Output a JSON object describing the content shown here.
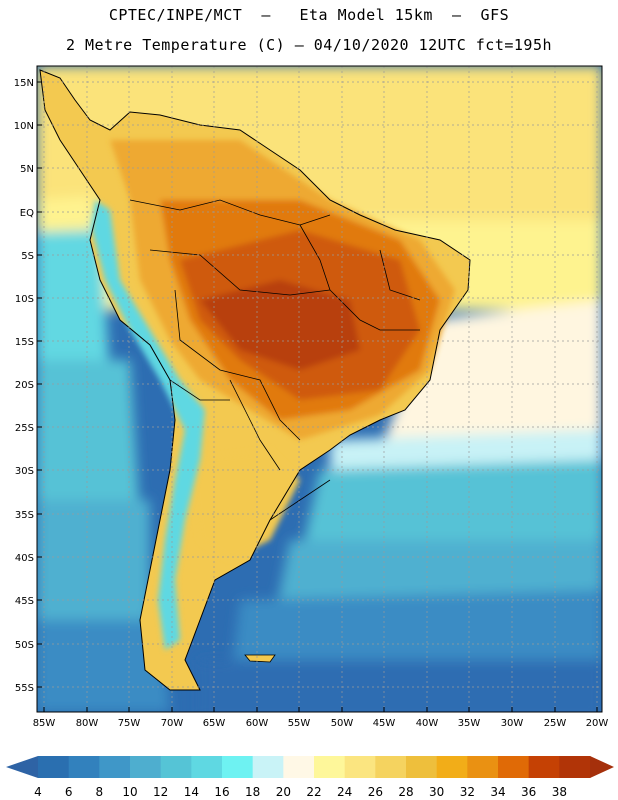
{
  "header": {
    "title_line1": "CPTEC/INPE/MCT  –   Eta Model 15km  –  GFS",
    "title_line2": "2 Metre Temperature (C) – 04/10/2020 12UTC fct=195h"
  },
  "map": {
    "lat_labels": [
      "15N",
      "10N",
      "5N",
      "EQ",
      "5S",
      "10S",
      "15S",
      "20S",
      "25S",
      "30S",
      "35S",
      "40S",
      "45S",
      "50S",
      "55S"
    ],
    "lon_labels": [
      "85W",
      "80W",
      "75W",
      "70W",
      "65W",
      "60W",
      "55W",
      "50W",
      "45W",
      "40W",
      "35W",
      "30W",
      "25W",
      "20W"
    ]
  },
  "colorbar": {
    "labels": [
      "4",
      "6",
      "8",
      "10",
      "12",
      "14",
      "16",
      "18",
      "20",
      "22",
      "24",
      "26",
      "28",
      "30",
      "32",
      "34",
      "36",
      "38"
    ],
    "colors": [
      "#2a6fb0",
      "#3281bd",
      "#3f97c8",
      "#4eaecf",
      "#55c4d6",
      "#5fd8e2",
      "#6ef2f2",
      "#c9f3f7",
      "#fff8e6",
      "#fef79a",
      "#fbe580",
      "#f5d35f",
      "#eebf3c",
      "#f2ad18",
      "#ea9112",
      "#e06a06",
      "#c54104",
      "#b13407"
    ],
    "left_color": "#2e63a5",
    "right_color": "#a5300b"
  },
  "map_colors": {
    "sea_deep": "#2d6db2",
    "sea_mid": "#3a8cc4",
    "sea_cool": "#4fb0d0",
    "sea_teal": "#56c2d6",
    "sea_cyan": "#62d8e2",
    "sea_light": "#6ef0f0",
    "sea_pale": "#c8f2f6",
    "sea_cream": "#fff6e0",
    "sea_warm": "#fef38f",
    "sea_yellow": "#fbe37a",
    "land_warm": "#f3c950",
    "land_orange": "#eea930",
    "land_hot": "#e17a10",
    "land_hotter": "#cf5a08",
    "land_hottest": "#b8400a",
    "andes": "#5fd8e2"
  }
}
